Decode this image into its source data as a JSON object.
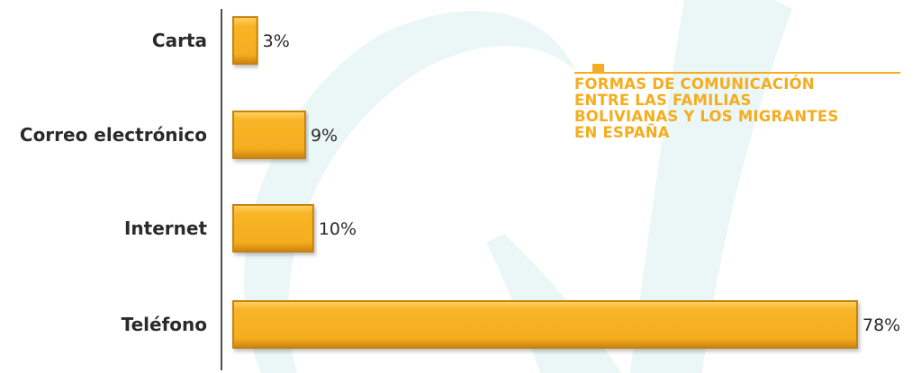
{
  "chart_data": {
    "type": "bar",
    "orientation": "horizontal",
    "title": "FORMAS DE COMUNICACIÓN\nENTRE LAS FAMILIAS\nBOLIVIANAS Y LOS MIGRANTES\nEN ESPAÑA",
    "categories": [
      "Carta",
      "Correo electrónico",
      "Internet",
      "Teléfono"
    ],
    "values": [
      3,
      9,
      10,
      78
    ],
    "value_labels": [
      "3%",
      "9%",
      "10%",
      "78%"
    ],
    "unit": "%",
    "xlim": [
      0,
      78
    ],
    "grid": false,
    "legend": "none",
    "colors": {
      "bar": "#f5ad1f",
      "bar_dark": "#c98210",
      "title": "#f5ad1f",
      "axis": "#222222",
      "watermark": "#eaf7f6"
    }
  }
}
